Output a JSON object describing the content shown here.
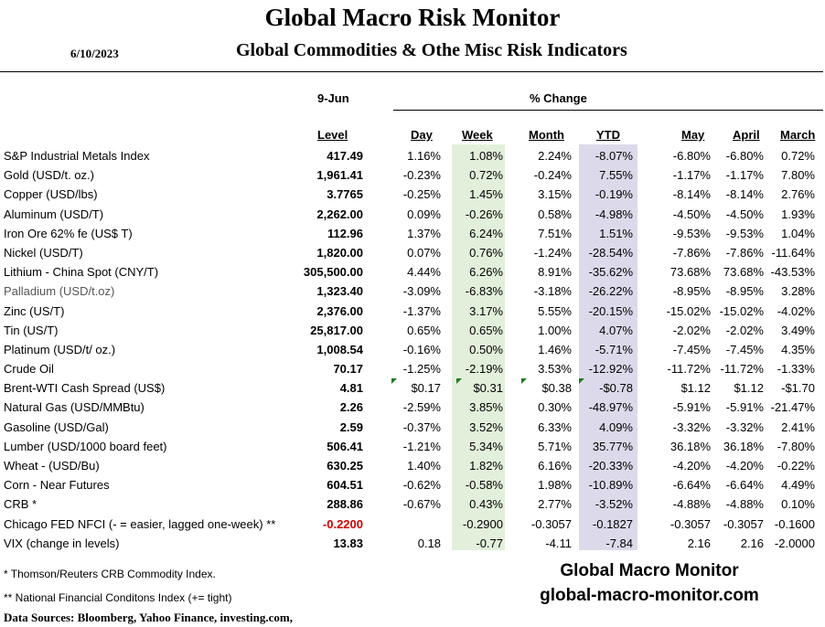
{
  "header": {
    "title": "Global Macro Risk Monitor",
    "date": "6/10/2023",
    "subtitle": "Global Commodities & Othe Misc Risk Indicators"
  },
  "columns": {
    "level_date": "9-Jun",
    "pct_change": "% Change",
    "level": "Level",
    "day": "Day",
    "week": "Week",
    "month": "Month",
    "ytd": "YTD",
    "may": "May",
    "april": "April",
    "march": "March"
  },
  "rows": [
    {
      "label": "S&P Industrial Metals Index",
      "level": "417.49",
      "day": "1.16%",
      "week": "1.08%",
      "month": "2.24%",
      "ytd": "-8.07%",
      "may": "-6.80%",
      "april": "-6.80%",
      "march": "0.72%"
    },
    {
      "label": "Gold (USD/t. oz.)",
      "level": "1,961.41",
      "day": "-0.23%",
      "week": "0.72%",
      "month": "-0.24%",
      "ytd": "7.55%",
      "may": "-1.17%",
      "april": "-1.17%",
      "march": "7.80%"
    },
    {
      "label": "Copper (USD/lbs)",
      "level": "3.7765",
      "day": "-0.25%",
      "week": "1.45%",
      "month": "3.15%",
      "ytd": "-0.19%",
      "may": "-8.14%",
      "april": "-8.14%",
      "march": "2.76%"
    },
    {
      "label": "Aluminum (USD/T)",
      "level": "2,262.00",
      "day": "0.09%",
      "week": "-0.26%",
      "month": "0.58%",
      "ytd": "-4.98%",
      "may": "-4.50%",
      "april": "-4.50%",
      "march": "1.93%"
    },
    {
      "label": "Iron Ore 62% fe (US$ T)",
      "level": "112.96",
      "day": "1.37%",
      "week": "6.24%",
      "month": "7.51%",
      "ytd": "1.51%",
      "may": "-9.53%",
      "april": "-9.53%",
      "march": "1.04%"
    },
    {
      "label": "Nickel (USD/T)",
      "level": "1,820.00",
      "day": "0.07%",
      "week": "0.76%",
      "month": "-1.24%",
      "ytd": "-28.54%",
      "may": "-7.86%",
      "april": "-7.86%",
      "march": "-11.64%"
    },
    {
      "label": "Lithium - China Spot (CNY/T)",
      "level": "305,500.00",
      "day": "4.44%",
      "week": "6.26%",
      "month": "8.91%",
      "ytd": "-35.62%",
      "may": "73.68%",
      "april": "73.68%",
      "march": "-43.53%"
    },
    {
      "label": "Palladium (USD/t.oz)",
      "level": "1,323.40",
      "day": "-3.09%",
      "week": "-6.83%",
      "month": "-3.18%",
      "ytd": "-26.22%",
      "may": "-8.95%",
      "april": "-8.95%",
      "march": "3.28%",
      "light": true
    },
    {
      "label": "Zinc (US/T)",
      "level": "2,376.00",
      "day": "-1.37%",
      "week": "3.17%",
      "month": "5.55%",
      "ytd": "-20.15%",
      "may": "-15.02%",
      "april": "-15.02%",
      "march": "-4.02%"
    },
    {
      "label": "Tin (US/T)",
      "level": "25,817.00",
      "day": "0.65%",
      "week": "0.65%",
      "month": "1.00%",
      "ytd": "4.07%",
      "may": "-2.02%",
      "april": "-2.02%",
      "march": "3.49%"
    },
    {
      "label": "Platinum (USD/t/ oz.)",
      "level": "1,008.54",
      "day": "-0.16%",
      "week": "0.50%",
      "month": "1.46%",
      "ytd": "-5.71%",
      "may": "-7.45%",
      "april": "-7.45%",
      "march": "4.35%"
    },
    {
      "label": "Crude Oil",
      "level": "70.17",
      "day": "-1.25%",
      "week": "-2.19%",
      "month": "3.53%",
      "ytd": "-12.92%",
      "may": "-11.72%",
      "april": "-11.72%",
      "march": "-1.33%"
    },
    {
      "label": "Brent-WTI Cash Spread (US$)",
      "level": "4.81",
      "day": "$0.17",
      "week": "$0.31",
      "month": "$0.38",
      "ytd": "-$0.78",
      "may": "$1.12",
      "april": "$1.12",
      "march": "-$1.70",
      "flags": true
    },
    {
      "label": "Natural Gas  (USD/MMBtu)",
      "level": "2.26",
      "day": "-2.59%",
      "week": "3.85%",
      "month": "0.30%",
      "ytd": "-48.97%",
      "may": "-5.91%",
      "april": "-5.91%",
      "march": "-21.47%"
    },
    {
      "label": "Gasoline (USD/Gal)",
      "level": "2.59",
      "day": "-0.37%",
      "week": "3.52%",
      "month": "6.33%",
      "ytd": "4.09%",
      "may": "-3.32%",
      "april": "-3.32%",
      "march": "2.41%"
    },
    {
      "label": "Lumber (USD/1000 board feet)",
      "level": "506.41",
      "day": "-1.21%",
      "week": "5.34%",
      "month": "5.71%",
      "ytd": "35.77%",
      "may": "36.18%",
      "april": "36.18%",
      "march": "-7.80%"
    },
    {
      "label": "Wheat - (USD/Bu)",
      "level": "630.25",
      "day": "1.40%",
      "week": "1.82%",
      "month": "6.16%",
      "ytd": "-20.33%",
      "may": "-4.20%",
      "april": "-4.20%",
      "march": "-0.22%"
    },
    {
      "label": "Corn - Near Futures",
      "level": "604.51",
      "day": "-0.62%",
      "week": "-0.58%",
      "month": "1.98%",
      "ytd": "-10.89%",
      "may": "-6.64%",
      "april": "-6.64%",
      "march": "4.49%"
    },
    {
      "label": "CRB *",
      "level": "288.86",
      "day": "-0.67%",
      "week": "0.43%",
      "month": "2.77%",
      "ytd": "-3.52%",
      "may": "-4.88%",
      "april": "-4.88%",
      "march": "0.10%"
    },
    {
      "label": "Chicago FED NFCI (- = easier, lagged one-week) **",
      "level": "-0.2200",
      "day": "",
      "week": "-0.2900",
      "month": "-0.3057",
      "ytd": "-0.1827",
      "may": "-0.3057",
      "april": "-0.3057",
      "march": "-0.1600",
      "level_red": true
    },
    {
      "label": "VIX (change in levels)",
      "level": "13.83",
      "day": "0.18",
      "week": "-0.77",
      "month": "-4.11",
      "ytd": "-7.84",
      "may": "2.16",
      "april": "2.16",
      "march": "-2.0000"
    }
  ],
  "footnotes": {
    "crb": "*     Thomson/Reuters CRB Commodity Index.",
    "nfci": "** National Financial Conditons Index (+= tight)",
    "sources": "Data Sources:  Bloomberg,  Yahoo Finance, investing.com,"
  },
  "brand": {
    "name": "Global Macro Monitor",
    "url": "global-macro-monitor.com"
  }
}
